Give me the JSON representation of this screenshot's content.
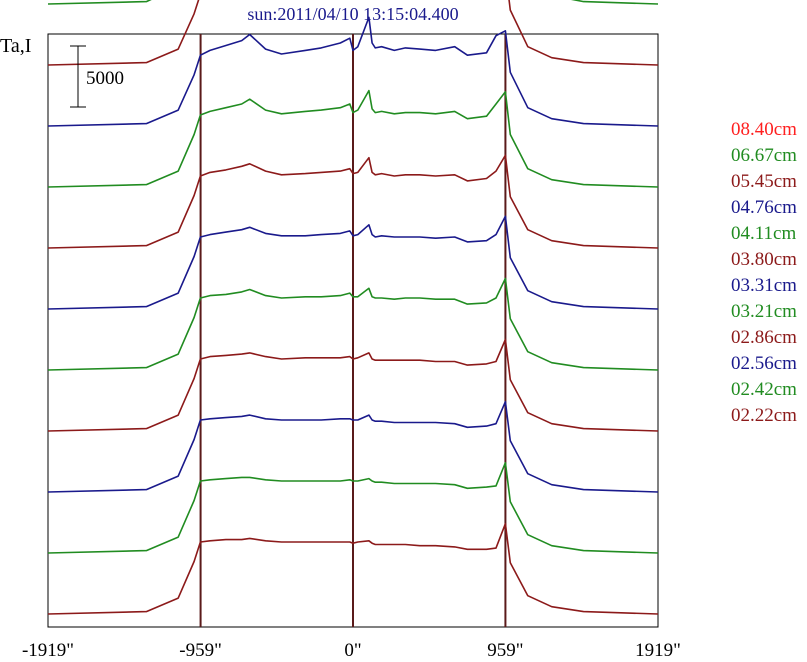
{
  "chart_data": {
    "type": "line",
    "title": "sun:2011/04/10 13:15:04.400",
    "ylabel": "Ta,I",
    "xlabel": "",
    "x_ticks": [
      {
        "value": -1919,
        "label": "-1919\""
      },
      {
        "value": -959,
        "label": "-959\""
      },
      {
        "value": 0,
        "label": "0\""
      },
      {
        "value": 959,
        "label": "959\""
      },
      {
        "value": 1919,
        "label": "1919\""
      }
    ],
    "xlim": [
      -1919,
      1919
    ],
    "vertical_lines": [
      -959,
      0,
      959
    ],
    "scale_bar": {
      "label": "5000",
      "value": 5000
    },
    "series_offset": 5000,
    "legend_position": "right",
    "grid": false,
    "series": [
      {
        "name": "08.40cm",
        "color": "#ff2020",
        "baseline": 55000,
        "x": [
          -1919,
          -1300,
          -1100,
          -1000,
          -960,
          -900,
          -820,
          -780,
          -720,
          -650,
          -550,
          -450,
          -300,
          -200,
          -80,
          -20,
          0,
          30,
          100,
          120,
          140,
          180,
          260,
          330,
          420,
          520,
          640,
          720,
          840,
          900,
          959,
          990,
          1100,
          1250,
          1450,
          1919
        ],
        "y": [
          0,
          200,
          1500,
          4500,
          6000,
          7000,
          8000,
          9500,
          10500,
          16000,
          11000,
          9000,
          9600,
          10500,
          13000,
          15000,
          9000,
          10000,
          19500,
          14000,
          11000,
          12000,
          10000,
          10600,
          10200,
          9600,
          11800,
          8200,
          9000,
          13500,
          10500,
          6000,
          2000,
          800,
          200,
          0
        ]
      },
      {
        "name": "06.67cm",
        "color": "#218c21",
        "baseline": 50000,
        "x": [
          -1919,
          -1300,
          -1100,
          -1000,
          -960,
          -900,
          -800,
          -700,
          -650,
          -550,
          -450,
          -300,
          -200,
          -80,
          -20,
          0,
          30,
          100,
          120,
          140,
          180,
          260,
          330,
          420,
          520,
          640,
          720,
          840,
          900,
          959,
          990,
          1100,
          1250,
          1450,
          1919
        ],
        "y": [
          0,
          200,
          1400,
          4500,
          6300,
          6800,
          7500,
          9000,
          10000,
          7500,
          7000,
          7500,
          7800,
          8800,
          10500,
          8200,
          8500,
          13800,
          9500,
          8000,
          8500,
          7800,
          8200,
          8000,
          7800,
          8800,
          7000,
          7400,
          9800,
          8500,
          5000,
          1700,
          700,
          200,
          0
        ]
      },
      {
        "name": "05.45cm",
        "color": "#8c1a1a",
        "baseline": 45000,
        "x": [
          -1919,
          -1300,
          -1100,
          -1000,
          -960,
          -900,
          -800,
          -700,
          -650,
          -550,
          -450,
          -300,
          -200,
          -80,
          -20,
          0,
          30,
          100,
          120,
          140,
          180,
          260,
          330,
          420,
          520,
          640,
          720,
          840,
          900,
          959,
          990,
          1100,
          1250,
          1450,
          1919
        ],
        "y": [
          0,
          200,
          1300,
          4200,
          5800,
          6300,
          6800,
          7600,
          7900,
          6700,
          6200,
          6500,
          6800,
          7200,
          8000,
          6500,
          7000,
          9800,
          7400,
          6600,
          7000,
          6500,
          6800,
          6700,
          6600,
          7000,
          6000,
          6200,
          8200,
          7800,
          4500,
          1500,
          600,
          200,
          0
        ]
      },
      {
        "name": "04.76cm",
        "color": "#1a1a8c",
        "baseline": 40000,
        "x": [
          -1919,
          -1300,
          -1100,
          -1000,
          -960,
          -900,
          -800,
          -700,
          -650,
          -550,
          -450,
          -300,
          -200,
          -80,
          -20,
          0,
          30,
          100,
          120,
          140,
          180,
          260,
          330,
          420,
          520,
          640,
          720,
          840,
          900,
          959,
          990,
          1100,
          1250,
          1450,
          1919
        ],
        "y": [
          0,
          200,
          1300,
          4200,
          5800,
          6200,
          6600,
          7000,
          7500,
          6300,
          5900,
          6200,
          6400,
          6800,
          7200,
          6200,
          6500,
          8900,
          6800,
          6400,
          6500,
          6200,
          6400,
          6300,
          6200,
          6500,
          5800,
          6000,
          7400,
          7800,
          4400,
          1500,
          600,
          200,
          0
        ]
      },
      {
        "name": "04.11cm",
        "color": "#218c21",
        "baseline": 35000,
        "x": [
          -1919,
          -1300,
          -1100,
          -1000,
          -960,
          -900,
          -800,
          -700,
          -650,
          -550,
          -450,
          -300,
          -200,
          -80,
          -20,
          0,
          30,
          100,
          120,
          140,
          180,
          260,
          330,
          420,
          520,
          640,
          720,
          840,
          900,
          959,
          990,
          1100,
          1250,
          1450,
          1919
        ],
        "y": [
          0,
          200,
          1300,
          4300,
          5900,
          6200,
          6500,
          6800,
          7200,
          6300,
          6000,
          6200,
          6300,
          6500,
          6800,
          6100,
          6300,
          7900,
          6400,
          6100,
          6200,
          6000,
          6100,
          6100,
          6000,
          6200,
          5600,
          5800,
          6800,
          7800,
          4300,
          1500,
          600,
          200,
          0
        ]
      },
      {
        "name": "03.80cm",
        "color": "#8c1a1a",
        "baseline": 30000,
        "x": [
          -1919,
          -1300,
          -1100,
          -1000,
          -960,
          -900,
          -800,
          -700,
          -650,
          -550,
          -450,
          -300,
          -200,
          -80,
          -20,
          0,
          30,
          100,
          120,
          140,
          180,
          260,
          330,
          420,
          520,
          640,
          720,
          840,
          900,
          959,
          990,
          1100,
          1250,
          1450,
          1919
        ],
        "y": [
          0,
          200,
          1300,
          4300,
          5900,
          6200,
          6400,
          6700,
          6900,
          6300,
          6000,
          6100,
          6200,
          6300,
          6500,
          6100,
          6200,
          7400,
          6200,
          6000,
          6100,
          5900,
          6000,
          6000,
          5900,
          6000,
          5500,
          5700,
          6300,
          7600,
          4200,
          1500,
          600,
          200,
          0
        ]
      },
      {
        "name": "03.31cm",
        "color": "#1a1a8c",
        "baseline": 25000,
        "x": [
          -1919,
          -1300,
          -1100,
          -1000,
          -960,
          -900,
          -800,
          -700,
          -650,
          -550,
          -450,
          -300,
          -200,
          -80,
          -20,
          0,
          30,
          100,
          120,
          140,
          180,
          260,
          330,
          420,
          520,
          640,
          720,
          840,
          900,
          959,
          990,
          1100,
          1250,
          1450,
          1919
        ],
        "y": [
          0,
          200,
          1300,
          4300,
          5900,
          6100,
          6300,
          6500,
          6700,
          6200,
          6000,
          6000,
          6100,
          6200,
          6400,
          6000,
          6100,
          6900,
          6100,
          5900,
          6000,
          5900,
          5900,
          5900,
          5800,
          5900,
          5500,
          5600,
          6100,
          7600,
          4200,
          1500,
          600,
          200,
          0
        ]
      },
      {
        "name": "03.21cm",
        "color": "#218c21",
        "baseline": 20000,
        "x": [
          -1919,
          -1300,
          -1100,
          -1000,
          -960,
          -900,
          -800,
          -700,
          -650,
          -550,
          -450,
          -300,
          -200,
          -80,
          -20,
          0,
          30,
          100,
          120,
          140,
          180,
          260,
          330,
          420,
          520,
          640,
          720,
          840,
          900,
          959,
          990,
          1100,
          1250,
          1450,
          1919
        ],
        "y": [
          0,
          200,
          1300,
          4300,
          5900,
          6100,
          6200,
          6400,
          6600,
          6100,
          5900,
          6000,
          6000,
          6100,
          6300,
          6000,
          6000,
          6700,
          6000,
          5900,
          5900,
          5800,
          5900,
          5900,
          5800,
          5800,
          5400,
          5500,
          5900,
          7500,
          4200,
          1500,
          600,
          200,
          0
        ]
      },
      {
        "name": "02.86cm",
        "color": "#8c1a1a",
        "baseline": 15000,
        "x": [
          -1919,
          -1300,
          -1100,
          -1000,
          -960,
          -900,
          -800,
          -700,
          -650,
          -550,
          -450,
          -300,
          -200,
          -80,
          -20,
          0,
          30,
          100,
          120,
          140,
          180,
          260,
          330,
          420,
          520,
          640,
          720,
          840,
          900,
          959,
          990,
          1100,
          1250,
          1450,
          1919
        ],
        "y": [
          0,
          200,
          1300,
          4300,
          5900,
          6100,
          6200,
          6300,
          6400,
          6100,
          5900,
          6000,
          6000,
          6000,
          6100,
          5900,
          6000,
          6400,
          5900,
          5800,
          5800,
          5800,
          5800,
          5800,
          5700,
          5700,
          5400,
          5500,
          5700,
          7500,
          4200,
          1500,
          600,
          200,
          0
        ]
      },
      {
        "name": "02.56cm",
        "color": "#1a1a8c",
        "baseline": 10000,
        "x": [
          -1919,
          -1300,
          -1100,
          -1000,
          -960,
          -900,
          -800,
          -700,
          -650,
          -550,
          -450,
          -300,
          -200,
          -80,
          -20,
          0,
          30,
          100,
          120,
          140,
          180,
          260,
          330,
          420,
          520,
          640,
          720,
          840,
          900,
          959,
          990,
          1100,
          1250,
          1450,
          1919
        ],
        "y": [
          0,
          200,
          1300,
          4300,
          5900,
          6000,
          6100,
          6200,
          6300,
          6000,
          5900,
          5900,
          5900,
          6000,
          6000,
          5900,
          5900,
          6300,
          5900,
          5800,
          5800,
          5700,
          5700,
          5700,
          5700,
          5600,
          5300,
          5400,
          5600,
          7400,
          4200,
          1500,
          600,
          200,
          0
        ]
      },
      {
        "name": "02.42cm",
        "color": "#218c21",
        "baseline": 5000,
        "x": [
          -1919,
          -1300,
          -1100,
          -1000,
          -960,
          -900,
          -800,
          -700,
          -650,
          -550,
          -450,
          -300,
          -200,
          -80,
          -20,
          0,
          30,
          100,
          120,
          140,
          180,
          260,
          330,
          420,
          520,
          640,
          720,
          840,
          900,
          959,
          990,
          1100,
          1250,
          1450,
          1919
        ],
        "y": [
          0,
          200,
          1300,
          4300,
          5900,
          6000,
          6100,
          6200,
          6200,
          6000,
          5900,
          5900,
          5900,
          5900,
          6000,
          5900,
          5900,
          6100,
          5900,
          5800,
          5800,
          5700,
          5700,
          5700,
          5700,
          5600,
          5300,
          5400,
          5500,
          7400,
          4200,
          1500,
          600,
          200,
          0
        ]
      },
      {
        "name": "02.22cm",
        "color": "#8c1a1a",
        "baseline": 0,
        "x": [
          -1919,
          -1300,
          -1100,
          -1000,
          -960,
          -900,
          -800,
          -700,
          -650,
          -550,
          -450,
          -300,
          -200,
          -80,
          -20,
          0,
          30,
          100,
          120,
          140,
          180,
          260,
          330,
          420,
          520,
          640,
          720,
          840,
          900,
          959,
          990,
          1100,
          1250,
          1450,
          1919
        ],
        "y": [
          0,
          200,
          1300,
          4300,
          5900,
          6000,
          6100,
          6100,
          6200,
          6000,
          5900,
          5900,
          5900,
          5900,
          5900,
          5800,
          5900,
          6000,
          5800,
          5700,
          5700,
          5700,
          5700,
          5600,
          5600,
          5500,
          5300,
          5300,
          5400,
          7400,
          4200,
          1500,
          600,
          200,
          0
        ]
      }
    ]
  }
}
